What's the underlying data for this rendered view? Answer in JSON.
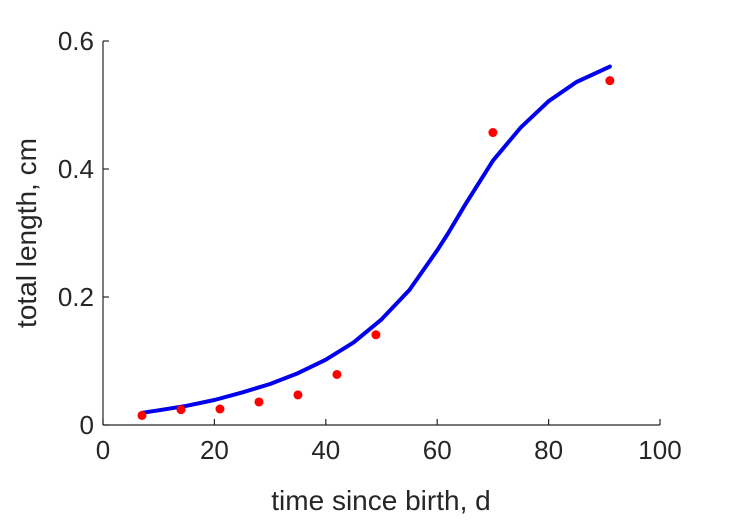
{
  "chart_data": {
    "type": "scatter",
    "title": "",
    "xlabel": "time since birth, d",
    "ylabel": "total length, cm",
    "xlim": [
      0,
      100
    ],
    "ylim": [
      0,
      0.6
    ],
    "x_ticks": [
      0,
      20,
      40,
      60,
      80,
      100
    ],
    "y_ticks": [
      0,
      0.2,
      0.4,
      0.6
    ],
    "x_tick_labels": [
      "0",
      "20",
      "40",
      "60",
      "80",
      "100"
    ],
    "y_tick_labels": [
      "0",
      "0.2",
      "0.4",
      "0.6"
    ],
    "grid": false,
    "legend": "none",
    "series": [
      {
        "kind": "scatter",
        "color": "#ff0000",
        "x": [
          7,
          14,
          21,
          28,
          35,
          42,
          49,
          70,
          91
        ],
        "y": [
          0.015,
          0.024,
          0.025,
          0.036,
          0.047,
          0.079,
          0.141,
          0.457,
          0.538
        ]
      },
      {
        "kind": "line",
        "color": "#0000ee",
        "x": [
          7,
          10,
          15,
          20,
          25,
          30,
          35,
          40,
          45,
          50,
          55,
          60,
          62,
          65,
          70,
          75,
          80,
          85,
          90,
          91
        ],
        "y": [
          0.019,
          0.023,
          0.03,
          0.039,
          0.051,
          0.064,
          0.081,
          0.102,
          0.129,
          0.165,
          0.211,
          0.273,
          0.3,
          0.344,
          0.413,
          0.465,
          0.506,
          0.536,
          0.556,
          0.56
        ]
      }
    ]
  }
}
